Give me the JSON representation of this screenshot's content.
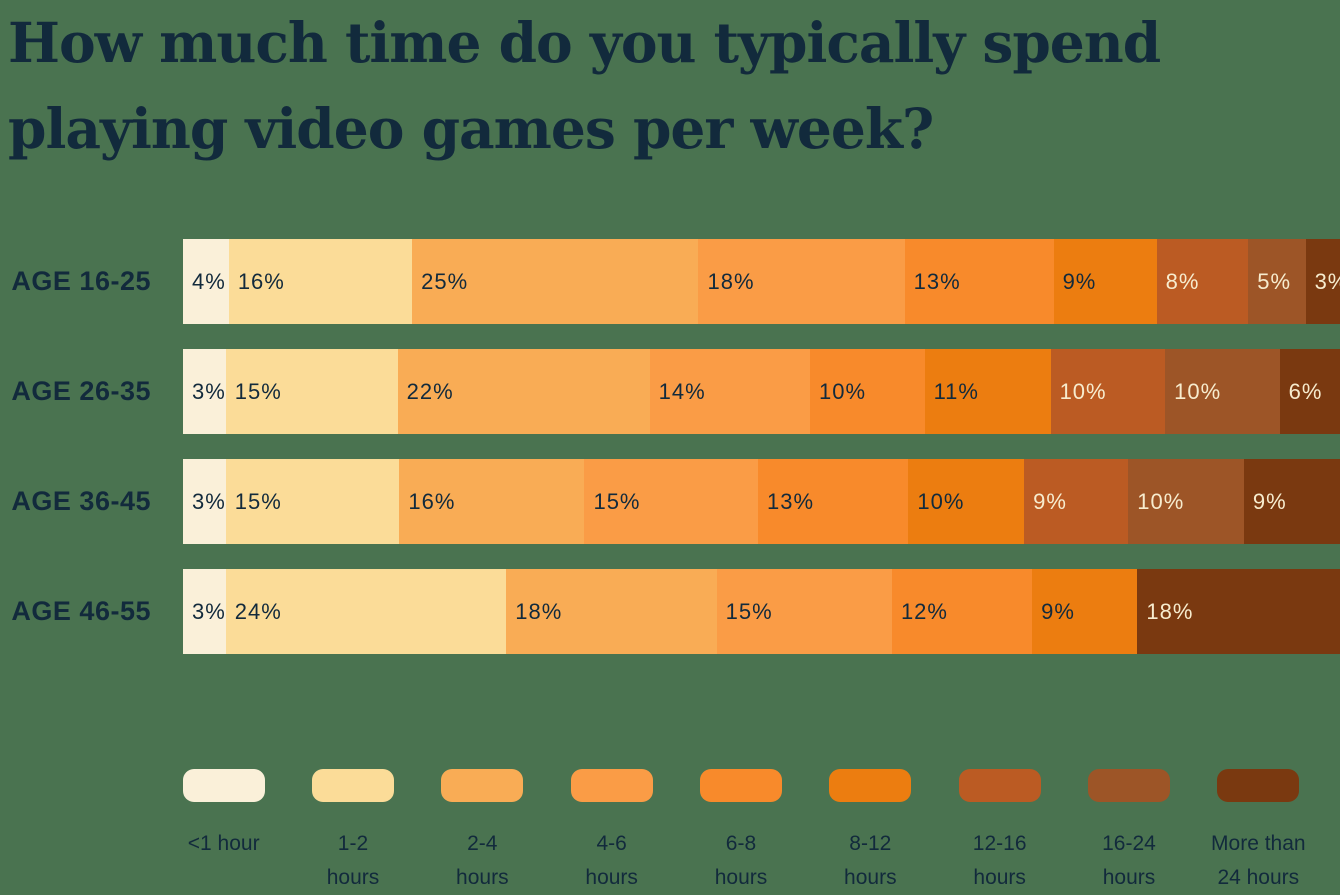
{
  "title": {
    "line1": "How much time do you typically spend",
    "line2": "playing video games per week?",
    "full": "How much time do you typically spend playing video games per week?"
  },
  "colors": {
    "background": "#4A7350",
    "text_dark": "#122A3C",
    "text_light": "#F7ECCE"
  },
  "chart_data": {
    "type": "bar",
    "variant": "stacked-horizontal",
    "title": "How much time do you typically spend playing video games per week?",
    "value_suffix": "%",
    "legend_position": "bottom",
    "categories": [
      "<1 hour",
      "1-2 hours",
      "2-4 hours",
      "4-6 hours",
      "6-8 hours",
      "8-12 hours",
      "12-16 hours",
      "16-24 hours",
      "More than 24 hours"
    ],
    "category_colors": [
      "#FAF0D9",
      "#FBDC98",
      "#F9AC55",
      "#FA9C46",
      "#F88A2B",
      "#EC7D10",
      "#BB5B23",
      "#9D5527",
      "#7A3910"
    ],
    "light_text_min_category_index": 6,
    "rows": [
      {
        "label": "AGE 16-25",
        "segments": [
          {
            "category": "<1 hour",
            "value": 4
          },
          {
            "category": "1-2 hours",
            "value": 16
          },
          {
            "category": "2-4 hours",
            "value": 25
          },
          {
            "category": "4-6 hours",
            "value": 18
          },
          {
            "category": "6-8 hours",
            "value": 13
          },
          {
            "category": "8-12 hours",
            "value": 9
          },
          {
            "category": "12-16 hours",
            "value": 8
          },
          {
            "category": "16-24 hours",
            "value": 5
          },
          {
            "category": "More than 24 hours",
            "value": 3
          }
        ]
      },
      {
        "label": "AGE 26-35",
        "segments": [
          {
            "category": "<1 hour",
            "value": 3
          },
          {
            "category": "1-2 hours",
            "value": 15
          },
          {
            "category": "2-4 hours",
            "value": 22
          },
          {
            "category": "4-6 hours",
            "value": 14
          },
          {
            "category": "6-8 hours",
            "value": 10
          },
          {
            "category": "8-12 hours",
            "value": 11
          },
          {
            "category": "12-16 hours",
            "value": 10
          },
          {
            "category": "16-24 hours",
            "value": 10
          },
          {
            "category": "More than 24 hours",
            "value": 6
          }
        ]
      },
      {
        "label": "AGE 36-45",
        "segments": [
          {
            "category": "<1 hour",
            "value": 3
          },
          {
            "category": "1-2 hours",
            "value": 15
          },
          {
            "category": "2-4 hours",
            "value": 16
          },
          {
            "category": "4-6 hours",
            "value": 15
          },
          {
            "category": "6-8 hours",
            "value": 13
          },
          {
            "category": "8-12 hours",
            "value": 10
          },
          {
            "category": "12-16 hours",
            "value": 9
          },
          {
            "category": "16-24 hours",
            "value": 10
          },
          {
            "category": "More than 24 hours",
            "value": 9
          }
        ]
      },
      {
        "label": "AGE 46-55",
        "segments": [
          {
            "category": "<1 hour",
            "value": 3
          },
          {
            "category": "1-2 hours",
            "value": 24
          },
          {
            "category": "2-4 hours",
            "value": 18
          },
          {
            "category": "4-6 hours",
            "value": 15
          },
          {
            "category": "6-8 hours",
            "value": 12
          },
          {
            "category": "8-12 hours",
            "value": 9
          },
          {
            "category": "More than 24 hours",
            "value": 18
          }
        ]
      }
    ]
  },
  "legend": {
    "items": [
      {
        "lines": [
          "<1 hour"
        ]
      },
      {
        "lines": [
          "1-2",
          "hours"
        ]
      },
      {
        "lines": [
          "2-4",
          "hours"
        ]
      },
      {
        "lines": [
          "4-6",
          "hours"
        ]
      },
      {
        "lines": [
          "6-8",
          "hours"
        ]
      },
      {
        "lines": [
          "8-12",
          "hours"
        ]
      },
      {
        "lines": [
          "12-16",
          "hours"
        ]
      },
      {
        "lines": [
          "16-24",
          "hours"
        ]
      },
      {
        "lines": [
          "More than",
          "24 hours"
        ]
      }
    ]
  }
}
